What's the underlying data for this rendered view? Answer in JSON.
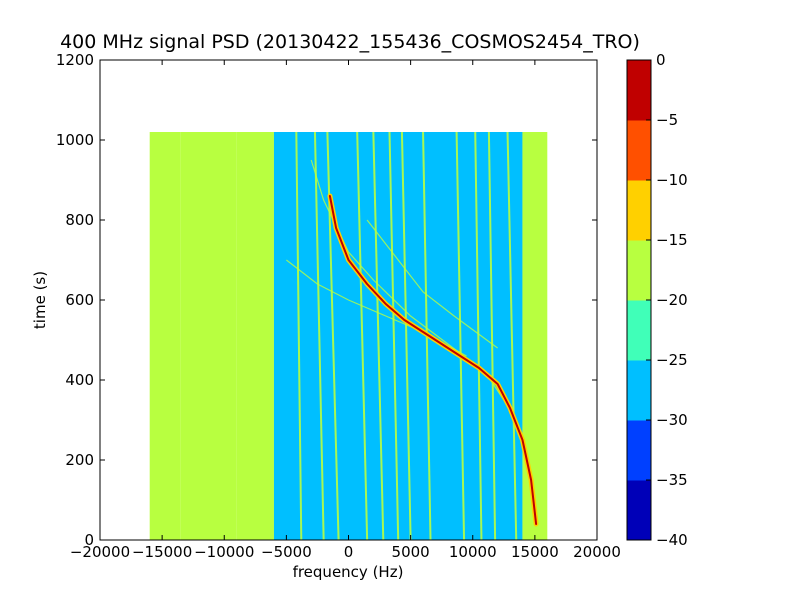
{
  "chart_data": {
    "type": "heatmap",
    "title": "400 MHz signal PSD (20130422_155436_COSMOS2454_TRO)",
    "xlabel": "frequency (Hz)",
    "ylabel": "time (s)",
    "xlim": [
      -20000,
      20000
    ],
    "ylim": [
      0,
      1200
    ],
    "xticks": [
      -20000,
      -15000,
      -10000,
      -5000,
      0,
      5000,
      10000,
      15000,
      20000
    ],
    "xtick_labels": [
      "−20000",
      "−15000",
      "−10000",
      "−5000",
      "0",
      "5000",
      "10000",
      "15000",
      "20000"
    ],
    "yticks": [
      0,
      200,
      400,
      600,
      800,
      1000,
      1200
    ],
    "ytick_labels": [
      "0",
      "200",
      "400",
      "600",
      "800",
      "1000",
      "1200"
    ],
    "data_extent": {
      "x": [
        -16000,
        16000
      ],
      "y": [
        0,
        1020
      ]
    },
    "colorbar": {
      "levels": [
        -40,
        -35,
        -30,
        -25,
        -20,
        -15,
        -10,
        -5,
        0
      ],
      "tick_labels": [
        "−40",
        "−35",
        "−30",
        "−25",
        "−20",
        "−15",
        "−10",
        "−5",
        "0"
      ],
      "colors": [
        "#0000b8",
        "#0040ff",
        "#00bfff",
        "#40ffb8",
        "#b8ff40",
        "#ffd000",
        "#ff5000",
        "#c00000"
      ]
    },
    "background_regions": [
      {
        "x": [
          -16000,
          -13500
        ],
        "value": -20
      },
      {
        "x": [
          -13500,
          -9000
        ],
        "value": -16
      },
      {
        "x": [
          -9000,
          -6000
        ],
        "value": -20
      },
      {
        "x": [
          -6000,
          14000
        ],
        "value": -27
      },
      {
        "x": [
          14000,
          16000
        ],
        "value": -20
      }
    ],
    "signal_trace": {
      "value": -3,
      "points": [
        [
          -1500,
          860
        ],
        [
          -1000,
          780
        ],
        [
          0,
          700
        ],
        [
          1500,
          640
        ],
        [
          3000,
          590
        ],
        [
          4500,
          550
        ],
        [
          6500,
          510
        ],
        [
          8500,
          470
        ],
        [
          10500,
          430
        ],
        [
          12000,
          390
        ],
        [
          13000,
          330
        ],
        [
          14000,
          250
        ],
        [
          14700,
          150
        ],
        [
          15100,
          40
        ]
      ]
    },
    "satellite_traces": [
      {
        "value": -20,
        "points": [
          [
            -3000,
            950
          ],
          [
            -2000,
            850
          ],
          [
            0,
            720
          ],
          [
            2000,
            650
          ],
          [
            5000,
            560
          ],
          [
            8000,
            490
          ],
          [
            11000,
            420
          ],
          [
            12500,
            350
          ]
        ]
      },
      {
        "value": -20,
        "points": [
          [
            -5000,
            700
          ],
          [
            -2500,
            640
          ],
          [
            0,
            600
          ],
          [
            3000,
            560
          ],
          [
            6000,
            520
          ],
          [
            9500,
            460
          ]
        ]
      },
      {
        "value": -20,
        "points": [
          [
            1500,
            800
          ],
          [
            4000,
            700
          ],
          [
            6000,
            620
          ],
          [
            8500,
            560
          ],
          [
            12000,
            480
          ]
        ]
      }
    ],
    "tones": [
      {
        "x": [
          -14000,
          -14000
        ],
        "value": -18
      },
      {
        "x": [
          -11500,
          -11700
        ],
        "value": -18
      },
      {
        "x": [
          -9800,
          -10300
        ],
        "value": -18
      },
      {
        "x": [
          -7500,
          -7700
        ],
        "value": -18
      },
      {
        "x": [
          -6200,
          -6500
        ],
        "value": -18
      },
      {
        "x": [
          -3800,
          -4200
        ],
        "value": -18
      },
      {
        "x": [
          -2000,
          -2700
        ],
        "value": -18
      },
      {
        "x": [
          -800,
          -1700
        ],
        "value": -18
      },
      {
        "x": [
          1500,
          700
        ],
        "value": -18
      },
      {
        "x": [
          2800,
          2000
        ],
        "value": -18
      },
      {
        "x": [
          4000,
          3300
        ],
        "value": -18
      },
      {
        "x": [
          5000,
          4300
        ],
        "value": -18
      },
      {
        "x": [
          6600,
          6000
        ],
        "value": -18
      },
      {
        "x": [
          9300,
          8700
        ],
        "value": -18
      },
      {
        "x": [
          10700,
          10200
        ],
        "value": -18
      },
      {
        "x": [
          11800,
          11300
        ],
        "value": -18
      },
      {
        "x": [
          13500,
          12800
        ],
        "value": -18
      }
    ]
  }
}
